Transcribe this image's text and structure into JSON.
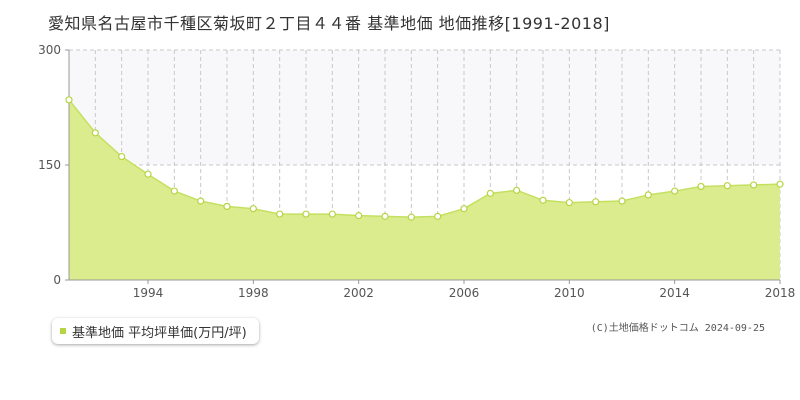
{
  "chart_data": {
    "type": "area",
    "title": "愛知県名古屋市千種区菊坂町２丁目４４番 基準地価 地価推移[1991-2018]",
    "x": [
      1991,
      1992,
      1993,
      1994,
      1995,
      1996,
      1997,
      1998,
      1999,
      2000,
      2001,
      2002,
      2003,
      2004,
      2005,
      2006,
      2007,
      2008,
      2009,
      2010,
      2011,
      2012,
      2013,
      2014,
      2015,
      2016,
      2017,
      2018
    ],
    "series": [
      {
        "name": "基準地価 平均坪単価(万円/坪)",
        "values": [
          235,
          192,
          161,
          138,
          116,
          103,
          96,
          93,
          86,
          86,
          86,
          84,
          83,
          82,
          83,
          93,
          113,
          117,
          104,
          101,
          102,
          103,
          111,
          116,
          122,
          123,
          124,
          125
        ]
      }
    ],
    "xlim": [
      1991,
      2018
    ],
    "ylim": [
      0,
      300
    ],
    "yticks": [
      "0",
      "150",
      "300"
    ],
    "xticks": [
      "1994",
      "1998",
      "2002",
      "2006",
      "2010",
      "2014",
      "2018"
    ],
    "xtick_values": [
      1994,
      1998,
      2002,
      2006,
      2010,
      2014,
      2018
    ],
    "grid": true,
    "legend_position": "bottom-left",
    "colors": {
      "fill": "#dbec8f",
      "line": "#c4e060",
      "marker_fill": "#ffffff",
      "marker_stroke": "#b5d542",
      "grid": "#c8c8c8",
      "upper_band": "#f8f8fa"
    }
  },
  "legend": {
    "label": "基準地価 平均坪単価(万円/坪)"
  },
  "copyright": "(C)土地価格ドットコム 2024-09-25"
}
